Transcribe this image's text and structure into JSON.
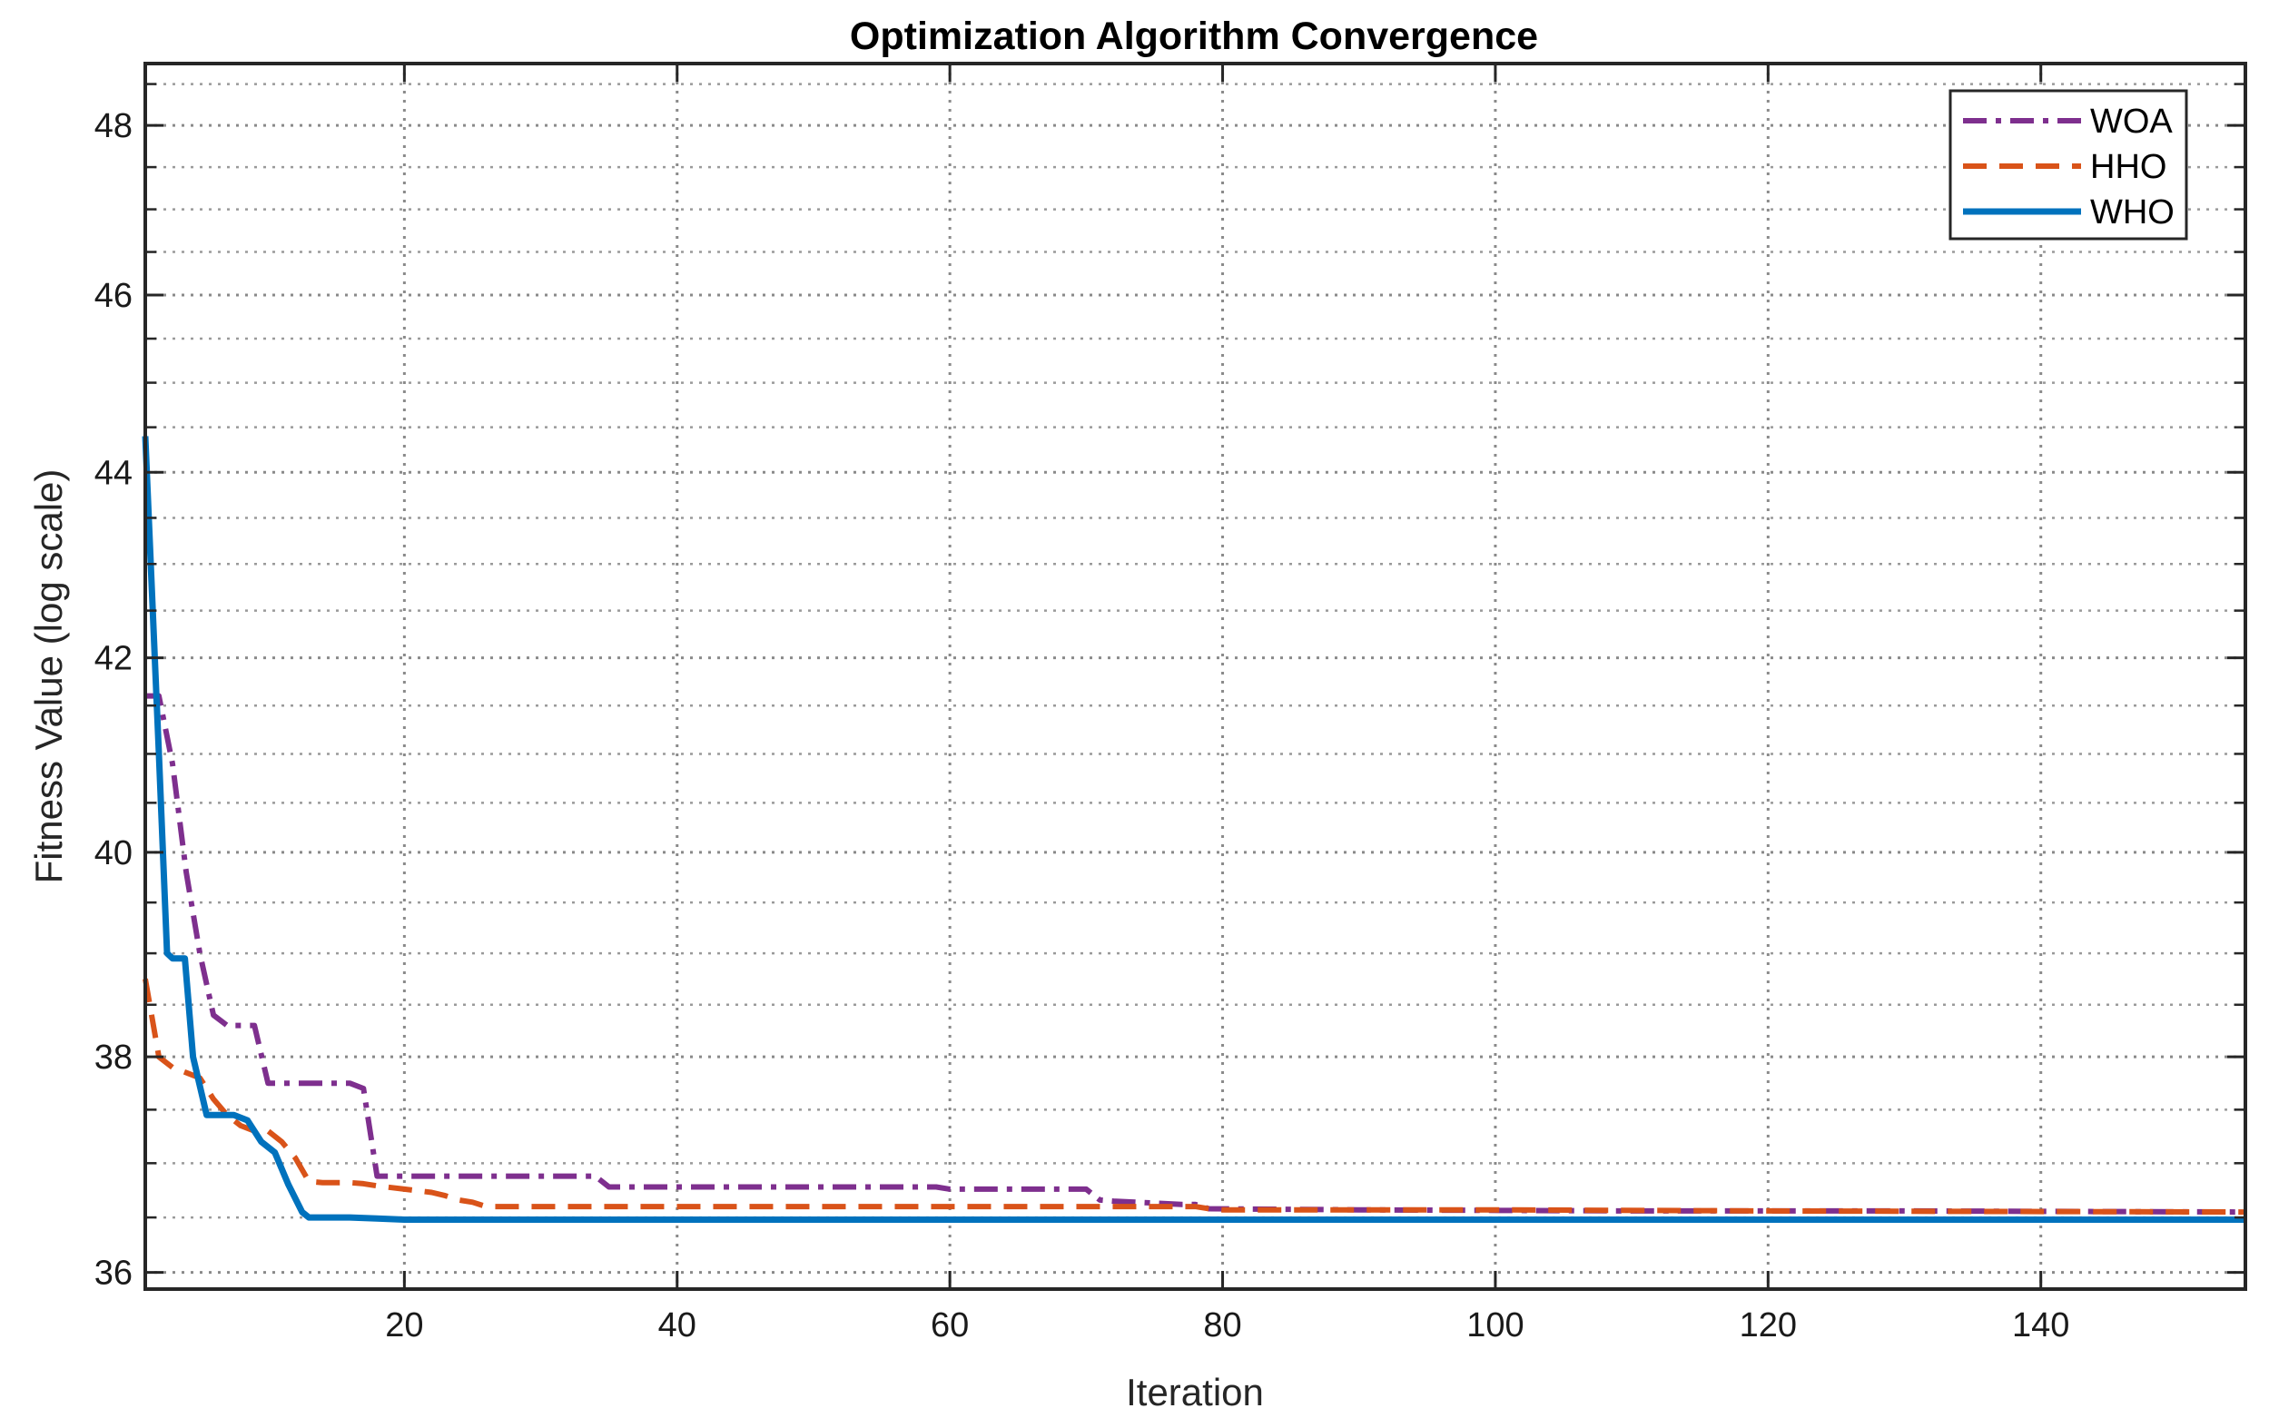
{
  "chart_data": {
    "type": "line",
    "title": "Optimization Algorithm Convergence",
    "xlabel": "Iteration",
    "ylabel": "Fitness Value (log scale)",
    "xlim": [
      1,
      155
    ],
    "ylim": [
      35.85,
      48.75
    ],
    "y_scale": "log",
    "grid": true,
    "minor_grid": true,
    "legend_position": "top-right",
    "x_ticks": [
      20,
      40,
      60,
      80,
      100,
      120,
      140
    ],
    "y_ticks": [
      36,
      38,
      40,
      42,
      44,
      46,
      48
    ],
    "series": [
      {
        "name": "WOA",
        "color": "#7E2F8E",
        "style": "dash-dot",
        "x": [
          1,
          2,
          3,
          4,
          5,
          6,
          7,
          8,
          9,
          10,
          11,
          12,
          13,
          14,
          15,
          16,
          17,
          18,
          19,
          20,
          30,
          34,
          35,
          36,
          59,
          60,
          70,
          71,
          72,
          77,
          78,
          79,
          90,
          110,
          130,
          155
        ],
        "y": [
          41.6,
          41.6,
          40.9,
          39.8,
          39.0,
          38.4,
          38.3,
          38.3,
          38.3,
          37.75,
          37.75,
          37.75,
          37.75,
          37.75,
          37.75,
          37.75,
          37.7,
          36.88,
          36.88,
          36.88,
          36.88,
          36.88,
          36.78,
          36.78,
          36.78,
          36.76,
          36.76,
          36.66,
          36.65,
          36.62,
          36.62,
          36.58,
          36.57,
          36.56,
          36.56,
          36.55
        ]
      },
      {
        "name": "HHO",
        "color": "#D95319",
        "style": "dashed",
        "x": [
          1,
          2,
          3,
          4,
          5,
          6,
          7,
          8,
          9,
          10,
          11,
          12,
          13,
          14,
          16,
          17,
          18,
          20,
          22,
          23,
          24,
          25,
          26,
          40,
          60,
          78,
          79,
          80,
          100,
          120,
          155
        ],
        "y": [
          38.75,
          38.0,
          37.9,
          37.85,
          37.8,
          37.6,
          37.45,
          37.35,
          37.3,
          37.3,
          37.2,
          37.05,
          36.83,
          36.82,
          36.82,
          36.81,
          36.79,
          36.76,
          36.73,
          36.7,
          36.66,
          36.64,
          36.6,
          36.6,
          36.6,
          36.6,
          36.58,
          36.57,
          36.57,
          36.56,
          36.55
        ]
      },
      {
        "name": "WHO",
        "color": "#0072BD",
        "style": "solid",
        "x": [
          1,
          2,
          2.6,
          3,
          3.9,
          4.5,
          5.5,
          6,
          7.5,
          8.5,
          9.5,
          10.5,
          11.5,
          12.5,
          13,
          14,
          16,
          18,
          20,
          40,
          80,
          120,
          155
        ],
        "y": [
          44.4,
          41.0,
          39.0,
          38.95,
          38.95,
          38.0,
          37.45,
          37.45,
          37.45,
          37.4,
          37.2,
          37.1,
          36.8,
          36.55,
          36.5,
          36.5,
          36.5,
          36.49,
          36.48,
          36.48,
          36.48,
          36.48,
          36.48
        ]
      }
    ]
  }
}
